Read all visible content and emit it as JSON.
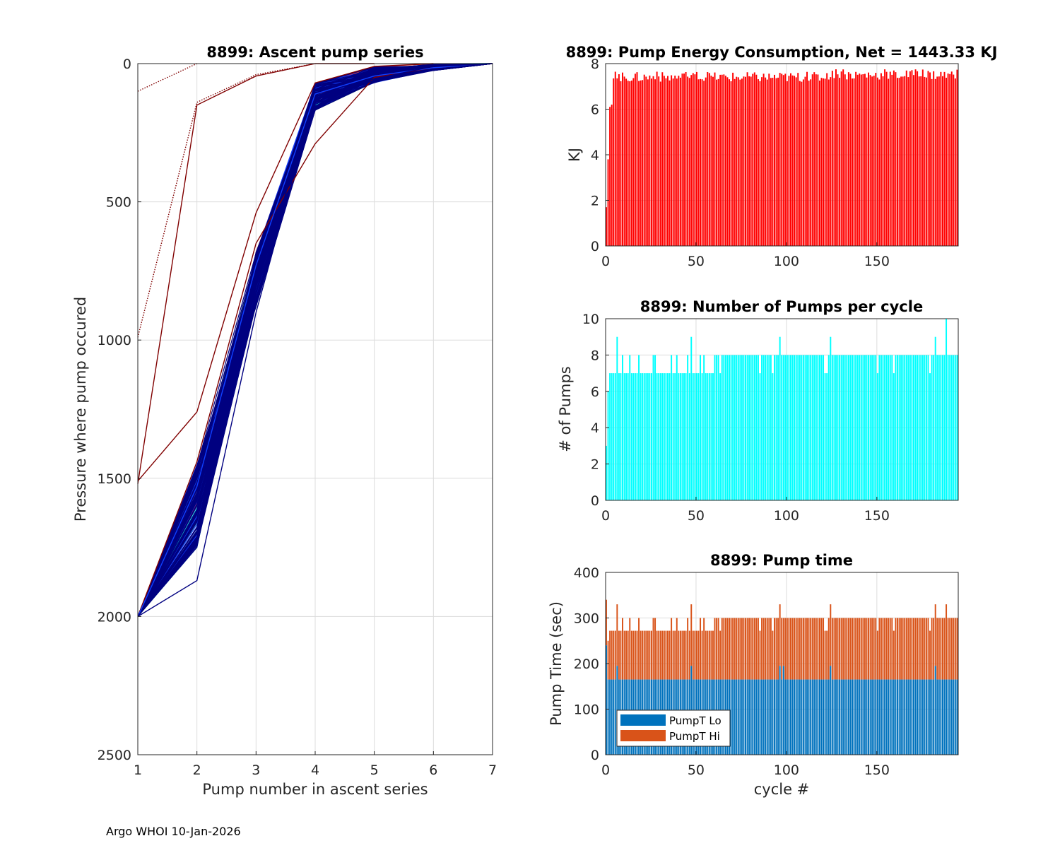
{
  "footer": "Argo WHOI 10-Jan-2026",
  "chart_data": [
    {
      "id": "ascent",
      "type": "line",
      "title": "8899: Ascent pump series",
      "xlabel": "Pump number in ascent series",
      "ylabel": "Pressure where pump occured",
      "xlim": [
        1,
        7
      ],
      "ylim": [
        0,
        2500
      ],
      "y_reversed": true,
      "xticks": [
        "1",
        "2",
        "3",
        "4",
        "5",
        "6",
        "7"
      ],
      "yticks": [
        "0",
        "500",
        "1000",
        "1500",
        "2000",
        "2500"
      ],
      "grid": true,
      "colors": {
        "early": "#800000",
        "mid_red": "#ff2000",
        "blue": "#1040ff",
        "navy": "#000080",
        "cyan": "#00e0e0",
        "green": "#60e060"
      },
      "representative_series": [
        {
          "name": "cycle-1",
          "color": "#800000",
          "style": "dotted",
          "x": [
            1,
            2
          ],
          "y": [
            100,
            0
          ]
        },
        {
          "name": "cycle-2",
          "color": "#800000",
          "style": "dotted",
          "x": [
            1,
            2,
            3,
            4
          ],
          "y": [
            990,
            140,
            40,
            0
          ]
        },
        {
          "name": "cycle-3",
          "color": "#800000",
          "style": "solid",
          "x": [
            1,
            2,
            3,
            4,
            5
          ],
          "y": [
            1520,
            150,
            45,
            0,
            0
          ]
        },
        {
          "name": "cycle-4",
          "color": "#800000",
          "style": "solid",
          "x": [
            1,
            2,
            3,
            4,
            5,
            6
          ],
          "y": [
            1510,
            1260,
            540,
            70,
            10,
            0
          ]
        },
        {
          "name": "cycle-5",
          "color": "#800000",
          "style": "solid",
          "x": [
            1,
            2,
            3,
            4,
            5,
            6,
            7
          ],
          "y": [
            2000,
            1440,
            650,
            290,
            50,
            15,
            0
          ]
        },
        {
          "name": "typical-a",
          "color": "#1040ff",
          "style": "solid",
          "x": [
            1,
            2,
            3,
            4,
            5,
            6,
            7
          ],
          "y": [
            2000,
            1530,
            730,
            110,
            45,
            15,
            0
          ]
        },
        {
          "name": "typical-b",
          "color": "#000080",
          "style": "solid",
          "x": [
            1,
            2,
            3,
            4,
            5,
            6,
            7
          ],
          "y": [
            2000,
            1720,
            800,
            140,
            60,
            20,
            0
          ]
        },
        {
          "name": "deep-outlier",
          "color": "#000080",
          "style": "solid",
          "x": [
            1,
            2,
            3,
            4,
            5,
            6,
            7
          ],
          "y": [
            2000,
            1870,
            900,
            120,
            55,
            10,
            0
          ]
        }
      ]
    },
    {
      "id": "energy",
      "type": "bar",
      "title": "8899: Pump Energy Consumption,  Net = 1443.33 KJ",
      "xlabel": "",
      "ylabel": "KJ",
      "xlim": [
        0,
        195
      ],
      "ylim": [
        0,
        8
      ],
      "xticks": [
        "0",
        "50",
        "100",
        "150"
      ],
      "yticks": [
        "0",
        "2",
        "4",
        "6",
        "8"
      ],
      "grid": true,
      "color": "#ff0000",
      "note": "cycles 0-194; first cycles low (1.7, 3.8, 6.1, 6.2), afterwards about 7.2-7.8 KJ"
    },
    {
      "id": "npumps",
      "type": "bar",
      "title": "8899: Number of Pumps per cycle",
      "xlabel": "",
      "ylabel": "# of Pumps",
      "xlim": [
        0,
        195
      ],
      "ylim": [
        0,
        10
      ],
      "xticks": [
        "0",
        "50",
        "100",
        "150"
      ],
      "yticks": [
        "0",
        "2",
        "4",
        "6",
        "8",
        "10"
      ],
      "grid": true,
      "color": "#00ffff",
      "note": "mostly 7 pumps for cycles 3-60 and 8 pumps afterwards; peaks of 9 near cycles 6, 47, 96, 124, 182 and 10 at cycle 188"
    },
    {
      "id": "pumptime",
      "type": "bar",
      "stacked": true,
      "title": "8899: Pump time",
      "xlabel": "cycle #",
      "ylabel": "Pump Time (sec)",
      "xlim": [
        0,
        195
      ],
      "ylim": [
        0,
        400
      ],
      "xticks": [
        "0",
        "50",
        "100",
        "150"
      ],
      "yticks": [
        "0",
        "100",
        "200",
        "300",
        "400"
      ],
      "grid": true,
      "legend": [
        "PumpT Lo",
        "PumpT Hi"
      ],
      "legend_position": "bottom-left",
      "colors": [
        "#0072bd",
        "#d95319"
      ],
      "note": "PumpT Lo about 165 s (peaks near 195-240); total about 270-300 s (peaks near 330-340)"
    }
  ]
}
